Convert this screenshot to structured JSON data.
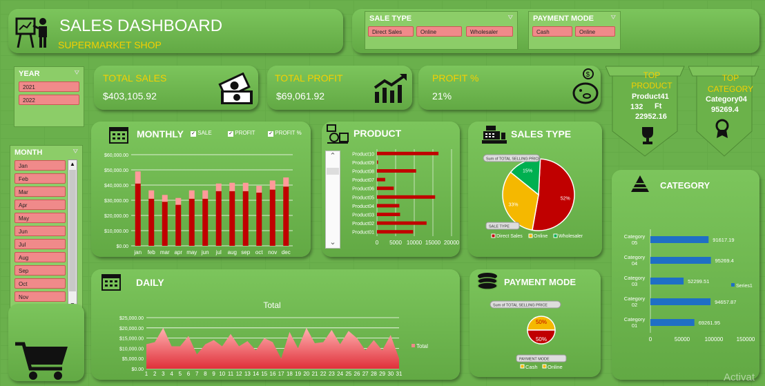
{
  "header": {
    "title": "SALES DASHBOARD",
    "subtitle": "SUPERMARKET SHOP"
  },
  "sale_type_slicer": {
    "title": "SALE TYPE",
    "items": [
      "Direct Sales",
      "Online",
      "Wholesaler"
    ]
  },
  "payment_mode_slicer": {
    "title": "PAYMENT MODE",
    "items": [
      "Cash",
      "Online"
    ]
  },
  "year_slicer": {
    "title": "YEAR",
    "items": [
      "2021",
      "2022"
    ]
  },
  "month_slicer": {
    "title": "MONTH",
    "items": [
      "Jan",
      "Feb",
      "Mar",
      "Apr",
      "May",
      "Jun",
      "Jul",
      "Aug",
      "Sep",
      "Oct",
      "Nov",
      "Dec"
    ]
  },
  "kpis": {
    "total_sales": {
      "label": "TOTAL SALES",
      "value": "$403,105.92"
    },
    "total_profit": {
      "label": "TOTAL PROFIT",
      "value": "$69,061.92"
    },
    "profit_pct": {
      "label": "PROFIT %",
      "value": "21%"
    }
  },
  "top_product": {
    "label": "TOP PRODUCT",
    "name": "Product41",
    "qty": "132",
    "unit": "Ft",
    "value": "22952.16"
  },
  "top_category": {
    "label": "TOP CATEGORY",
    "name": "Category04",
    "value": "95269.4"
  },
  "monthly": {
    "title": "MONTHLY",
    "legend": [
      "SALE",
      "PROFIT",
      "PROFIT %"
    ]
  },
  "product": {
    "title": "PRODUCT"
  },
  "sales_type": {
    "title": "SALES TYPE",
    "field_button": "Sum of TOTAL SELLING PRICE",
    "filter_button": "SALE TYPE"
  },
  "daily": {
    "title": "DAILY"
  },
  "payment_mode": {
    "title": "PAYMENT MODE",
    "field_button": "Sum of TOTAL SELLING PRICE",
    "filter_button": "PAYMENT MODE"
  },
  "category": {
    "title": "CATEGORY"
  },
  "watermark": "Activat",
  "colors": {
    "bg": "#6ab04c",
    "bar": "#c00000",
    "accent": "#f5d000",
    "pink": "#f08a8a",
    "blue": "#1f6fc5"
  },
  "chart_data": [
    {
      "type": "bar",
      "title": "MONTHLY",
      "categories": [
        "jan",
        "feb",
        "mar",
        "apr",
        "may",
        "jun",
        "jul",
        "aug",
        "sep",
        "oct",
        "nov",
        "dec"
      ],
      "series": [
        {
          "name": "SALE",
          "values": [
            41000,
            31000,
            29000,
            27000,
            31000,
            31000,
            36000,
            36000,
            36000,
            35000,
            37000,
            39000
          ]
        },
        {
          "name": "PROFIT",
          "values": [
            8000,
            5500,
            4500,
            4500,
            5500,
            5500,
            5000,
            5500,
            5500,
            4500,
            6000,
            6000
          ]
        }
      ],
      "yticks": [
        "$0.00",
        "$10,000.00",
        "$20,000.00",
        "$30,000.00",
        "$40,000.00",
        "$50,000.00",
        "$60,000.00"
      ],
      "ylim": [
        0,
        60000
      ]
    },
    {
      "type": "bar",
      "title": "PRODUCT",
      "categories": [
        "Product10",
        "Product09",
        "Product08",
        "Product07",
        "Product06",
        "Product05",
        "Product04",
        "Product03",
        "Product02",
        "Product01"
      ],
      "values": [
        16500,
        300,
        10500,
        2200,
        4500,
        15600,
        6000,
        6200,
        13300,
        9700
      ],
      "xticks": [
        "0",
        "5000",
        "10000",
        "15000",
        "20000"
      ],
      "xlim": [
        0,
        20000
      ]
    },
    {
      "type": "pie",
      "title": "SALES TYPE",
      "categories": [
        "Direct Sales",
        "Online",
        "Wholesaler"
      ],
      "values": [
        52,
        33,
        15
      ],
      "labels": [
        "52%",
        "33%",
        "15%"
      ]
    },
    {
      "type": "area",
      "title": "Total",
      "x": [
        1,
        2,
        3,
        4,
        5,
        6,
        7,
        8,
        9,
        10,
        11,
        12,
        13,
        14,
        15,
        16,
        17,
        18,
        19,
        20,
        21,
        22,
        23,
        24,
        25,
        26,
        27,
        28,
        29,
        30,
        31
      ],
      "values": [
        12000,
        13000,
        20000,
        11000,
        11000,
        16000,
        7000,
        12000,
        14000,
        11000,
        17000,
        11000,
        13500,
        9000,
        15000,
        13000,
        5000,
        18000,
        10000,
        20000,
        12500,
        13000,
        19000,
        12000,
        18500,
        15000,
        9000,
        14000,
        9000,
        16500,
        5000
      ],
      "series_name": "Total",
      "yticks": [
        "$0.00",
        "$5,000.00",
        "$10,000.00",
        "$15,000.00",
        "$20,000.00",
        "$25,000.00"
      ],
      "ylim": [
        0,
        25000
      ]
    },
    {
      "type": "pie",
      "title": "PAYMENT MODE",
      "categories": [
        "Cash",
        "Online"
      ],
      "values": [
        50,
        50
      ],
      "labels": [
        "50%",
        "50%"
      ]
    },
    {
      "type": "bar",
      "title": "CATEGORY",
      "categories": [
        "Category 05",
        "Category 04",
        "Category 03",
        "Category 02",
        "Category 01"
      ],
      "values": [
        91617.19,
        95269.4,
        52299.51,
        94657.87,
        69261.95
      ],
      "labels": [
        "91617.19",
        "95269.4",
        "52299.51",
        "94657.87",
        "69261.95"
      ],
      "series_name": "Series1",
      "xticks": [
        "0",
        "50000",
        "100000",
        "150000"
      ],
      "xlim": [
        0,
        150000
      ]
    }
  ]
}
